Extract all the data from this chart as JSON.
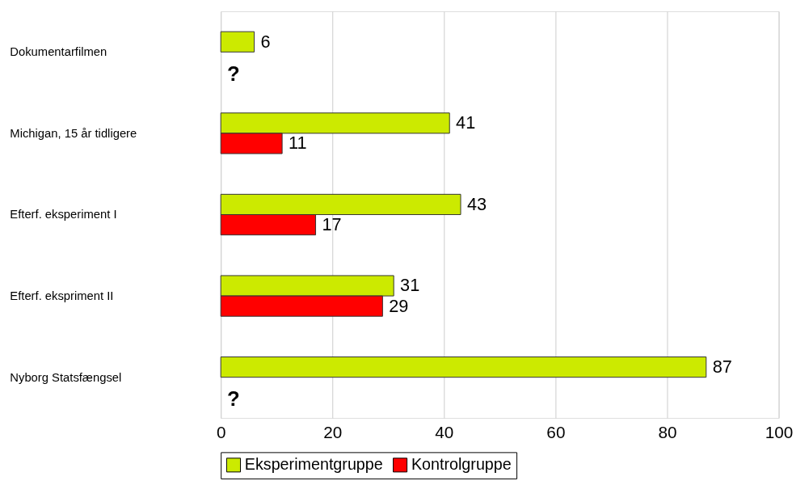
{
  "chart_data": {
    "type": "bar",
    "orientation": "horizontal",
    "categories": [
      "Dokumentarfilmen",
      "Michigan, 15 år tidligere",
      "Efterf. eksperiment I",
      "Efterf. ekspriment II",
      "Nyborg Statsfængsel"
    ],
    "series": [
      {
        "name": "Eksperimentgruppe",
        "color": "#ccea00",
        "values": [
          6,
          41,
          43,
          31,
          87
        ],
        "value_labels": [
          "6",
          "41",
          "43",
          "31",
          "87"
        ]
      },
      {
        "name": "Kontrolgruppe",
        "color": "#ff0000",
        "values": [
          null,
          11,
          17,
          29,
          null
        ],
        "value_labels": [
          "?",
          "11",
          "17",
          "29",
          "?"
        ]
      }
    ],
    "xlim": [
      0,
      100
    ],
    "xticks": [
      0,
      20,
      40,
      60,
      80,
      100
    ],
    "grid": "x",
    "legend": "bottom"
  }
}
